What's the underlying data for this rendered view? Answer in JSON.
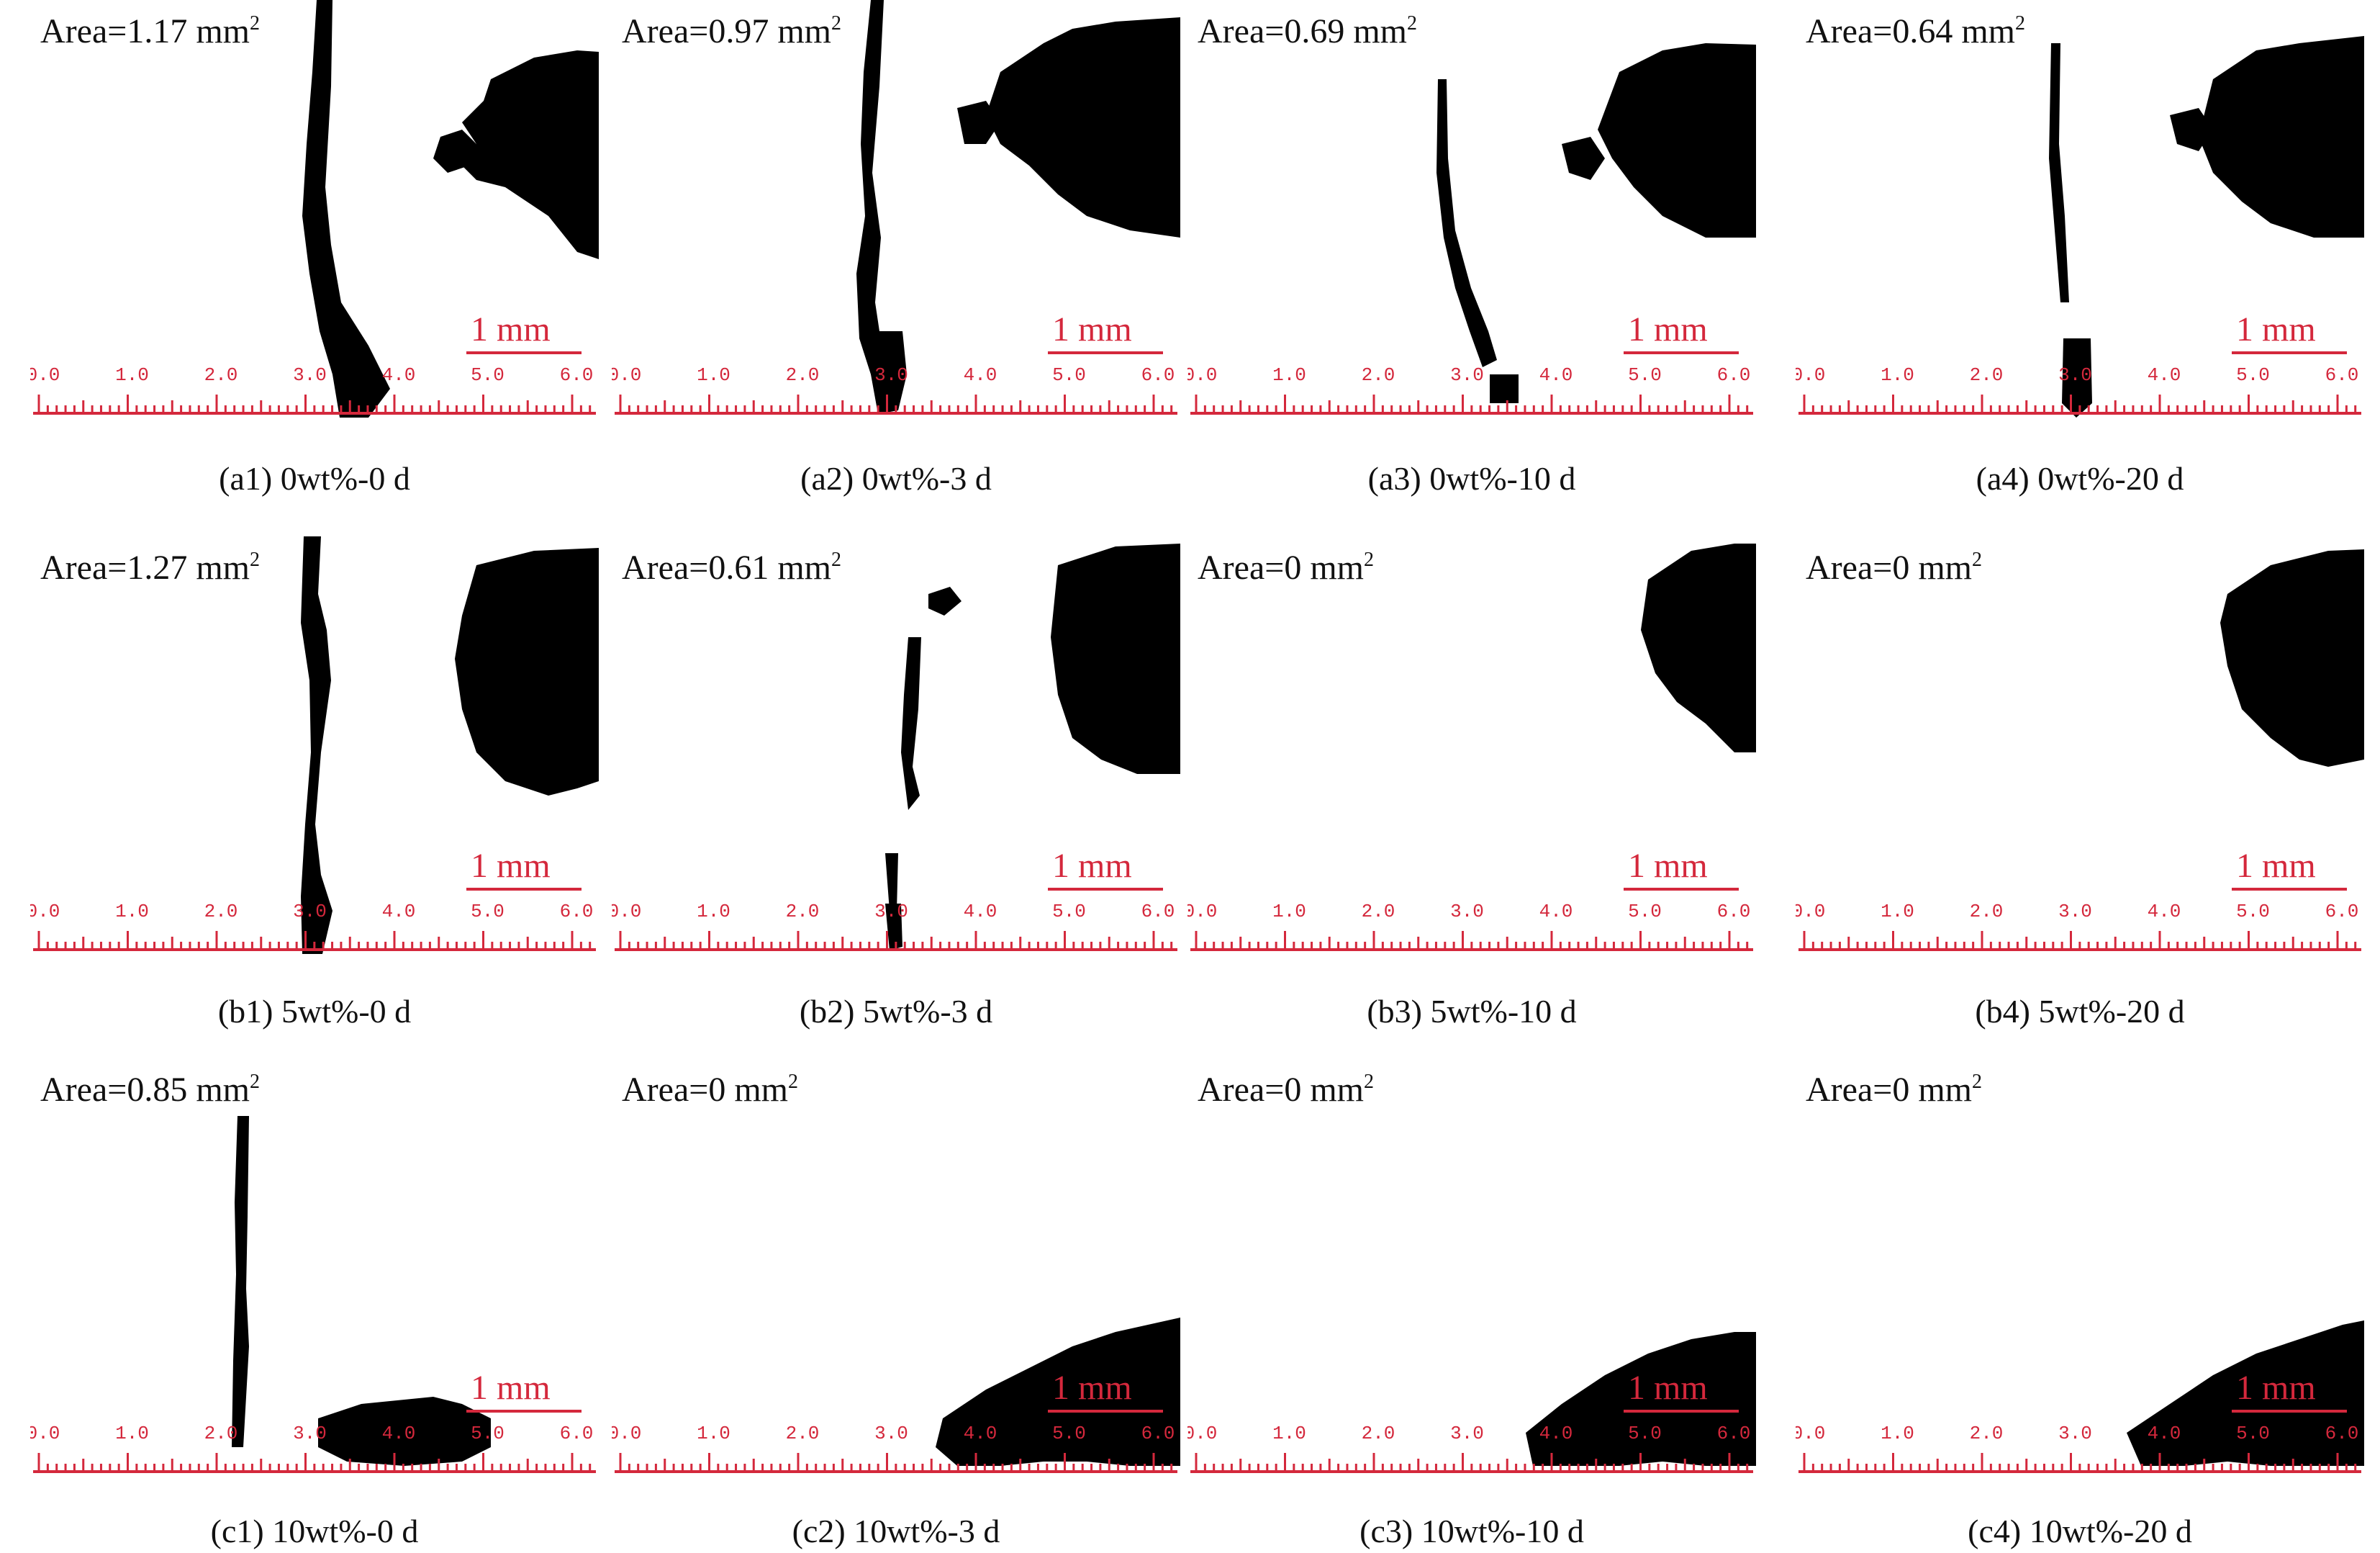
{
  "accent_color": "#d4283c",
  "ink_color": "#000000",
  "unit_squared": "2",
  "scale_bar_label": "1 mm",
  "ruler_ticks": [
    "0.0",
    "1.0",
    "2.0",
    "3.0",
    "4.0",
    "5.0",
    "6.0"
  ],
  "panels": [
    {
      "id": "a1",
      "area": "Area=1.17 mm",
      "caption": "(a1) 0wt%-0 d"
    },
    {
      "id": "a2",
      "area": "Area=0.97 mm",
      "caption": "(a2) 0wt%-3 d"
    },
    {
      "id": "a3",
      "area": "Area=0.69 mm",
      "caption": "(a3) 0wt%-10 d"
    },
    {
      "id": "a4",
      "area": "Area=0.64 mm",
      "caption": "(a4) 0wt%-20 d"
    },
    {
      "id": "b1",
      "area": "Area=1.27 mm",
      "caption": "(b1) 5wt%-0 d"
    },
    {
      "id": "b2",
      "area": "Area=0.61 mm",
      "caption": "(b2) 5wt%-3 d"
    },
    {
      "id": "b3",
      "area": "Area=0 mm",
      "caption": "(b3) 5wt%-10 d"
    },
    {
      "id": "b4",
      "area": "Area=0 mm",
      "caption": "(b4) 5wt%-20 d"
    },
    {
      "id": "c1",
      "area": "Area=0.85 mm",
      "caption": "(c1) 10wt%-0 d"
    },
    {
      "id": "c2",
      "area": "Area=0 mm",
      "caption": "(c2) 10wt%-3 d"
    },
    {
      "id": "c3",
      "area": "Area=0 mm",
      "caption": "(c3) 10wt%-10 d"
    },
    {
      "id": "c4",
      "area": "Area=0 mm",
      "caption": "(c4) 10wt%-20 d"
    }
  ]
}
